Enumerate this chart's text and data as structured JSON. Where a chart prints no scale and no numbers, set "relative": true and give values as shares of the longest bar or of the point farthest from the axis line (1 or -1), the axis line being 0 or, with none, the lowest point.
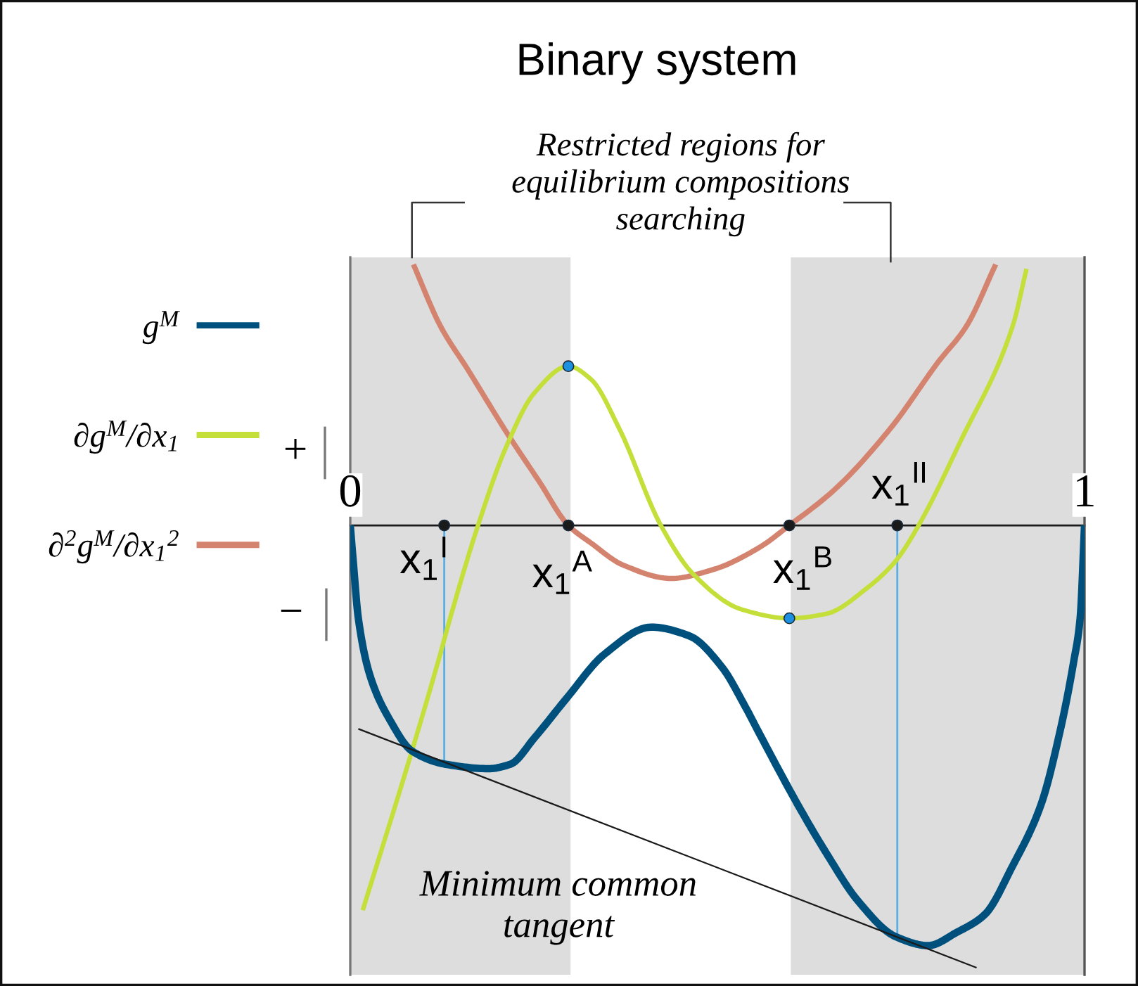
{
  "chart_data": {
    "type": "line",
    "title": "Binary system",
    "relative": true,
    "xlim": [
      0,
      1
    ],
    "xticks": [
      0,
      1
    ],
    "legend": "left",
    "bands": [
      {
        "axis": "x",
        "from": 0,
        "to": 0.3,
        "color": "#dddddd"
      },
      {
        "axis": "x",
        "from": 0.6,
        "to": 1,
        "color": "#dddddd"
      }
    ],
    "series": [
      {
        "name": "g$^{M}$",
        "color": "#00507d",
        "x": [
          0,
          0.004,
          0.011,
          0.027,
          0.054,
          0.084,
          0.13,
          0.188,
          0.218,
          0.251,
          0.295,
          0.347,
          0.41,
          0.462,
          0.506,
          0.538,
          0.557,
          0.609,
          0.648,
          0.692,
          0.743,
          0.787,
          0.826,
          0.864,
          0.902,
          0.941,
          0.966,
          0.985,
          0.994,
          1
        ],
        "values": [
          0,
          -0.08,
          -0.21,
          -0.34,
          -0.44,
          -0.51,
          -0.54,
          -0.55,
          -0.54,
          -0.48,
          -0.39,
          -0.29,
          -0.23,
          -0.25,
          -0.32,
          -0.41,
          -0.47,
          -0.63,
          -0.74,
          -0.85,
          -0.93,
          -0.95,
          -0.92,
          -0.88,
          -0.77,
          -0.63,
          -0.47,
          -0.31,
          -0.21,
          0
        ]
      },
      {
        "name": "∂g$^{M}$/∂x$_{1}$",
        "color": "#c5df3a",
        "x": [
          0.017,
          0.084,
          0.121,
          0.136,
          0.174,
          0.213,
          0.251,
          0.297,
          0.328,
          0.366,
          0.423,
          0.467,
          0.533,
          0.598,
          0.648,
          0.705,
          0.743,
          0.774,
          0.831,
          0.902,
          0.921
        ],
        "values": [
          -0.87,
          -0.51,
          -0.3,
          -0.21,
          0,
          0.18,
          0.3,
          0.36,
          0.33,
          0.22,
          0,
          -0.11,
          -0.19,
          -0.21,
          -0.2,
          -0.14,
          -0.08,
          0,
          0.19,
          0.45,
          0.58
        ]
      },
      {
        "name": "∂$^{2}$g$^{M}$/∂x$_{1}$$^{2}$",
        "color": "#d4836f",
        "x": [
          0.086,
          0.123,
          0.161,
          0.213,
          0.257,
          0.297,
          0.328,
          0.372,
          0.437,
          0.494,
          0.557,
          0.598,
          0.659,
          0.736,
          0.801,
          0.839,
          0.879
        ],
        "values": [
          0.59,
          0.45,
          0.35,
          0.21,
          0.1,
          0,
          -0.04,
          -0.09,
          -0.12,
          -0.1,
          -0.05,
          0,
          0.08,
          0.22,
          0.37,
          0.45,
          0.59
        ]
      },
      {
        "color": "#1a1a1a",
        "x": [
          0.011,
          0.853
        ],
        "values": [
          -0.46,
          -1.0
        ]
      },
      {
        "color": "#5aaee0",
        "x": [
          0.128,
          0.128
        ],
        "values": [
          0,
          -0.54
        ]
      },
      {
        "color": "#5aaee0",
        "x": [
          0.745,
          0.745
        ],
        "values": [
          0,
          -0.93
        ]
      },
      {
        "type": "scatter",
        "color": "#1a1a1a",
        "x": [
          0.128,
          0.297,
          0.598,
          0.745
        ],
        "values": [
          0,
          0,
          0,
          0
        ]
      },
      {
        "type": "scatter",
        "color": "#1e90e0",
        "x": [
          0.297,
          0.598
        ],
        "values": [
          0.36,
          -0.21
        ]
      }
    ],
    "annotations": [
      "Restricted regions for\nequilibrium compositions\nsearching",
      "Minimum common\ntangent",
      {
        "text": "x$_{1}$$^{I}$",
        "x": 0.128,
        "y": 0
      },
      {
        "text": "x$_{1}$$^{A}$",
        "x": 0.297,
        "y": 0
      },
      {
        "text": "x$_{1}$$^{B}$",
        "x": 0.598,
        "y": 0
      },
      {
        "text": "x$_{1}$$^{II}$",
        "x": 0.745,
        "y": 0
      },
      "+",
      "−"
    ]
  }
}
